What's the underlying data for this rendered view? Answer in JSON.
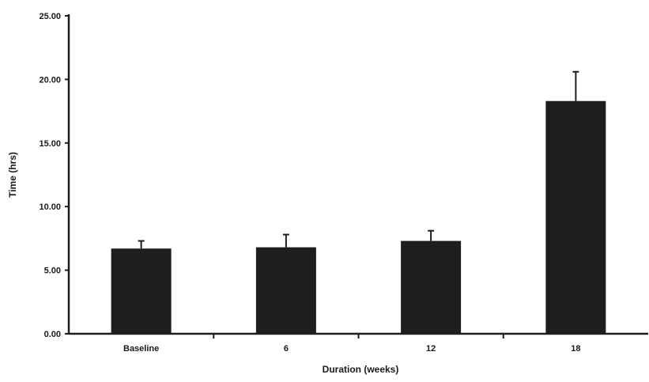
{
  "chart_data": {
    "type": "bar",
    "title": "",
    "xlabel": "Duration (weeks)",
    "ylabel": "Time (hrs)",
    "categories": [
      "Baseline",
      "6",
      "12",
      "18"
    ],
    "values": [
      6.7,
      6.8,
      7.3,
      18.3
    ],
    "errors": [
      0.6,
      1.0,
      0.8,
      2.3
    ],
    "ylim": [
      0,
      25
    ],
    "yticks": [
      "0.00",
      "5.00",
      "10.00",
      "15.00",
      "20.00",
      "25.00"
    ],
    "grid": false,
    "legend": "none",
    "bar_color": "#1e1e1e",
    "axis_color": "#1e1e1e"
  }
}
